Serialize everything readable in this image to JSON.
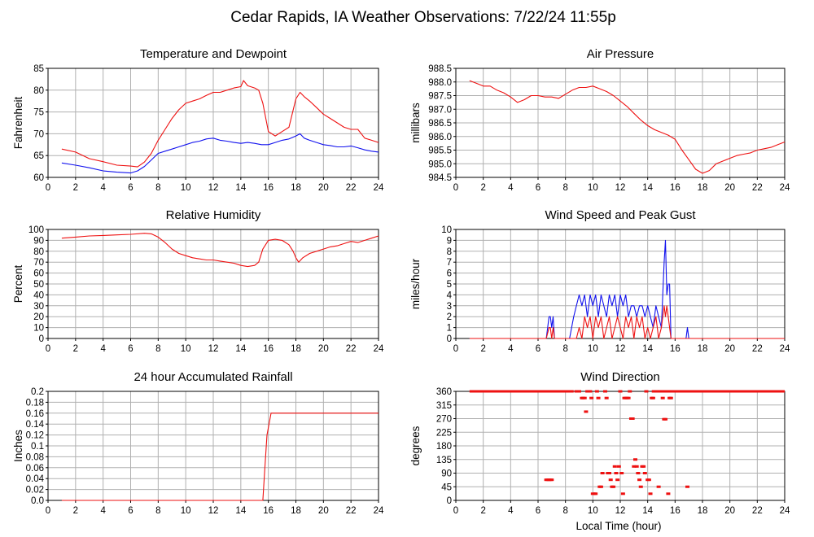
{
  "page": {
    "title": "Cedar Rapids, IA Weather Observations: 7/22/24 11:55p",
    "xlabel": "Local Time (hour)"
  },
  "colors": {
    "red": "#ee1111",
    "blue": "#1111ee",
    "grid": "#b0b0b0",
    "frame": "#000000"
  },
  "chart_data": [
    {
      "type": "line",
      "title": "Temperature and Dewpoint",
      "ylabel": "Fahrenheit",
      "xlim": [
        0,
        24
      ],
      "ylim": [
        60,
        85
      ],
      "xticks": [
        0,
        2,
        4,
        6,
        8,
        10,
        12,
        14,
        16,
        18,
        20,
        22,
        24
      ],
      "yticks": [
        60,
        65,
        70,
        75,
        80,
        85
      ],
      "grid": true,
      "series": [
        {
          "color": "red",
          "x": [
            1,
            2,
            3,
            4,
            5,
            6,
            6.5,
            7,
            7.5,
            8,
            8.5,
            9,
            9.5,
            10,
            10.5,
            11,
            11.5,
            12,
            12.5,
            13,
            13.5,
            14,
            14.2,
            14.5,
            15,
            15.3,
            15.6,
            16,
            16.5,
            17,
            17.5,
            18,
            18.3,
            18.6,
            19,
            19.5,
            20,
            20.5,
            21,
            21.5,
            22,
            22.5,
            23,
            23.5,
            24
          ],
          "y": [
            66.5,
            65.8,
            64.3,
            63.6,
            62.8,
            62.6,
            62.4,
            63.5,
            65.5,
            68.5,
            71,
            73.5,
            75.5,
            77,
            77.5,
            78,
            78.8,
            79.5,
            79.5,
            80,
            80.5,
            80.8,
            82.2,
            81,
            80.5,
            80,
            77,
            70.5,
            69.5,
            70.5,
            71.5,
            78,
            79.5,
            78.5,
            77.5,
            76,
            74.5,
            73.5,
            72.5,
            71.5,
            71,
            71,
            69,
            68.5,
            68
          ]
        },
        {
          "color": "blue",
          "x": [
            1,
            2,
            3,
            4,
            5,
            6,
            6.5,
            7,
            7.5,
            8,
            8.5,
            9,
            9.5,
            10,
            10.5,
            11,
            11.5,
            12,
            12.5,
            13,
            13.5,
            14,
            14.5,
            15,
            15.5,
            16,
            16.5,
            17,
            17.5,
            18,
            18.3,
            18.6,
            19,
            19.5,
            20,
            20.5,
            21,
            21.5,
            22,
            22.5,
            23,
            23.5,
            24
          ],
          "y": [
            63.3,
            62.8,
            62.2,
            61.5,
            61.2,
            61,
            61.5,
            62.5,
            64,
            65.5,
            66,
            66.5,
            67,
            67.5,
            68,
            68.3,
            68.8,
            69,
            68.5,
            68.3,
            68,
            67.8,
            68,
            67.8,
            67.5,
            67.5,
            68,
            68.5,
            68.8,
            69.5,
            70,
            69,
            68.5,
            68,
            67.5,
            67.3,
            67,
            67,
            67.2,
            66.8,
            66.3,
            66,
            65.8
          ]
        }
      ]
    },
    {
      "type": "line",
      "title": "Air Pressure",
      "ylabel": "millibars",
      "xlim": [
        0,
        24
      ],
      "ylim": [
        984.5,
        988.5
      ],
      "xticks": [
        0,
        2,
        4,
        6,
        8,
        10,
        12,
        14,
        16,
        18,
        20,
        22,
        24
      ],
      "yticks": [
        984.5,
        985.0,
        985.5,
        986.0,
        986.5,
        987.0,
        987.5,
        988.0,
        988.5
      ],
      "ytick_labels": [
        "984.5",
        "985.0",
        "985.5",
        "986.0",
        "986.5",
        "987.0",
        "987.5",
        "988.0",
        "988.5"
      ],
      "grid": true,
      "series": [
        {
          "color": "red",
          "x": [
            1,
            1.5,
            2,
            2.5,
            3,
            3.5,
            4,
            4.5,
            5,
            5.5,
            6,
            6.5,
            7,
            7.5,
            8,
            8.5,
            9,
            9.5,
            10,
            10.5,
            11,
            11.5,
            12,
            12.5,
            13,
            13.5,
            14,
            14.5,
            15,
            15.5,
            16,
            16.5,
            17,
            17.5,
            18,
            18.5,
            19,
            19.5,
            20,
            20.5,
            21,
            21.5,
            22,
            22.5,
            23,
            23.5,
            24
          ],
          "y": [
            988.05,
            987.95,
            987.85,
            987.85,
            987.7,
            987.6,
            987.45,
            987.25,
            987.35,
            987.5,
            987.5,
            987.45,
            987.45,
            987.4,
            987.55,
            987.7,
            987.8,
            987.8,
            987.85,
            987.75,
            987.65,
            987.5,
            987.3,
            987.1,
            986.85,
            986.6,
            986.4,
            986.25,
            986.15,
            986.05,
            985.9,
            985.5,
            985.15,
            984.8,
            984.65,
            984.75,
            985.0,
            985.1,
            985.2,
            985.3,
            985.35,
            985.4,
            985.5,
            985.55,
            985.6,
            985.7,
            985.8
          ]
        }
      ]
    },
    {
      "type": "line",
      "title": "Relative Humidity",
      "ylabel": "Percent",
      "xlim": [
        0,
        24
      ],
      "ylim": [
        0,
        100
      ],
      "xticks": [
        0,
        2,
        4,
        6,
        8,
        10,
        12,
        14,
        16,
        18,
        20,
        22,
        24
      ],
      "yticks": [
        0,
        10,
        20,
        30,
        40,
        50,
        60,
        70,
        80,
        90,
        100
      ],
      "grid": true,
      "series": [
        {
          "color": "red",
          "x": [
            1,
            2,
            3,
            4,
            5,
            6,
            7,
            7.5,
            8,
            8.5,
            9,
            9.5,
            10,
            10.5,
            11,
            11.5,
            12,
            12.5,
            13,
            13.5,
            14,
            14.5,
            15,
            15.3,
            15.6,
            16,
            16.5,
            17,
            17.5,
            17.8,
            18,
            18.2,
            18.5,
            19,
            19.5,
            20,
            20.5,
            21,
            21.5,
            22,
            22.5,
            23,
            23.5,
            24
          ],
          "y": [
            92,
            93,
            94,
            94.5,
            95,
            95.5,
            96.5,
            96,
            93,
            88,
            82,
            78,
            76,
            74,
            73,
            72,
            72,
            71,
            70,
            69,
            67,
            66,
            67,
            70,
            82,
            90,
            91,
            90,
            86,
            80,
            74,
            70,
            74,
            78,
            80,
            82,
            84,
            85,
            87,
            89,
            88,
            90,
            92,
            94
          ]
        }
      ]
    },
    {
      "type": "line",
      "title": "Wind Speed and Peak Gust",
      "ylabel": "miles/hour",
      "xlim": [
        0,
        24
      ],
      "ylim": [
        0,
        10
      ],
      "xticks": [
        0,
        2,
        4,
        6,
        8,
        10,
        12,
        14,
        16,
        18,
        20,
        22,
        24
      ],
      "yticks": [
        0,
        1,
        2,
        3,
        4,
        5,
        6,
        7,
        8,
        9,
        10
      ],
      "grid": true,
      "series": [
        {
          "color": "blue",
          "x": [
            1,
            6.6,
            6.8,
            6.9,
            7.0,
            7.1,
            7.2,
            8.3,
            8.6,
            8.8,
            9.0,
            9.2,
            9.4,
            9.6,
            9.8,
            10.0,
            10.2,
            10.4,
            10.6,
            10.8,
            11.0,
            11.2,
            11.4,
            11.6,
            11.8,
            12.0,
            12.2,
            12.4,
            12.6,
            12.8,
            13.0,
            13.2,
            13.4,
            13.6,
            13.8,
            14.0,
            14.2,
            14.4,
            14.6,
            14.8,
            15.0,
            15.1,
            15.2,
            15.3,
            15.4,
            15.5,
            15.6,
            15.7,
            15.8,
            16.0,
            16.8,
            16.9,
            17.0,
            24
          ],
          "y": [
            0,
            0,
            2,
            2,
            1,
            2,
            0,
            0,
            2,
            3,
            4,
            3,
            4,
            2,
            4,
            3,
            4,
            2,
            4,
            3,
            2,
            4,
            3,
            4,
            2,
            4,
            3,
            4,
            2,
            3,
            3,
            2,
            3,
            3,
            2,
            3,
            2,
            1,
            3,
            2,
            1,
            4,
            7,
            9,
            4,
            5,
            5,
            0,
            0,
            0,
            0,
            1,
            0,
            0
          ]
        },
        {
          "color": "red",
          "x": [
            1,
            6.6,
            6.8,
            6.9,
            7.0,
            7.1,
            7.2,
            8.8,
            9.0,
            9.2,
            9.4,
            9.6,
            9.8,
            10.0,
            10.2,
            10.4,
            10.6,
            10.8,
            11.0,
            11.2,
            11.4,
            11.6,
            11.8,
            12.0,
            12.2,
            12.4,
            12.6,
            12.8,
            13.0,
            13.2,
            13.4,
            13.6,
            13.8,
            14.0,
            14.2,
            14.4,
            14.6,
            14.8,
            15.0,
            15.2,
            15.3,
            15.4,
            15.5,
            15.6,
            15.7,
            24
          ],
          "y": [
            0,
            0,
            1,
            1,
            0,
            1,
            0,
            0,
            1,
            0,
            2,
            1,
            2,
            0,
            2,
            1,
            2,
            0,
            1,
            2,
            0,
            1,
            2,
            1,
            0,
            2,
            1,
            2,
            0,
            2,
            1,
            2,
            0,
            1,
            0,
            1,
            2,
            0,
            1,
            3,
            2,
            3,
            2,
            1,
            0,
            0
          ]
        }
      ]
    },
    {
      "type": "line",
      "title": "24 hour Accumulated Rainfall",
      "ylabel": "Inches",
      "xlim": [
        0,
        24
      ],
      "ylim": [
        0,
        0.2
      ],
      "xticks": [
        0,
        2,
        4,
        6,
        8,
        10,
        12,
        14,
        16,
        18,
        20,
        22,
        24
      ],
      "yticks": [
        0,
        0.02,
        0.04,
        0.06,
        0.08,
        0.1,
        0.12,
        0.14,
        0.16,
        0.18,
        0.2
      ],
      "ytick_labels": [
        "0.0",
        "0.02",
        "0.04",
        "0.06",
        "0.08",
        "0.1",
        "0.12",
        "0.14",
        "0.16",
        "0.18",
        "0.2"
      ],
      "grid": true,
      "series": [
        {
          "color": "red",
          "x": [
            1,
            15.6,
            15.75,
            15.9,
            16.05,
            16.2,
            24
          ],
          "y": [
            0,
            0,
            0.06,
            0.12,
            0.14,
            0.16,
            0.16
          ]
        }
      ]
    },
    {
      "type": "scatter",
      "title": "Wind Direction",
      "ylabel": "degrees",
      "xlabel": "Local Time (hour)",
      "xlim": [
        0,
        24
      ],
      "ylim": [
        0,
        360
      ],
      "xticks": [
        0,
        2,
        4,
        6,
        8,
        10,
        12,
        14,
        16,
        18,
        20,
        22,
        24
      ],
      "yticks": [
        0,
        45,
        90,
        135,
        180,
        225,
        270,
        315,
        360
      ],
      "grid": true,
      "solid_segments": [
        {
          "x0": 1,
          "x1": 8.6,
          "y": 360
        },
        {
          "x0": 14.3,
          "x1": 24,
          "y": 360
        }
      ],
      "series": [
        {
          "color": "red",
          "x": [
            6.6,
            6.7,
            6.8,
            6.9,
            7.0,
            8.8,
            9.0,
            9.2,
            9.3,
            9.4,
            9.5,
            9.6,
            9.8,
            9.9,
            10.0,
            10.1,
            10.2,
            10.3,
            10.4,
            10.5,
            10.6,
            10.7,
            10.9,
            11.0,
            11.1,
            11.2,
            11.3,
            11.4,
            11.5,
            11.6,
            11.7,
            11.8,
            11.9,
            12.0,
            12.1,
            12.2,
            12.3,
            12.4,
            12.5,
            12.6,
            12.7,
            12.8,
            12.9,
            13.0,
            13.1,
            13.2,
            13.3,
            13.4,
            13.5,
            13.6,
            13.7,
            13.8,
            13.9,
            14.0,
            14.1,
            14.2,
            14.3,
            14.4,
            14.5,
            14.6,
            14.7,
            14.8,
            15.0,
            15.1,
            15.2,
            15.3,
            15.4,
            15.5,
            15.6,
            15.7,
            15.8,
            16.9
          ],
          "y": [
            68,
            68,
            68,
            68,
            68,
            360,
            360,
            338,
            338,
            338,
            293,
            360,
            360,
            338,
            22,
            22,
            22,
            360,
            338,
            45,
            45,
            90,
            360,
            338,
            90,
            90,
            68,
            45,
            45,
            112,
            90,
            68,
            112,
            360,
            90,
            22,
            338,
            338,
            338,
            338,
            360,
            270,
            270,
            112,
            135,
            112,
            90,
            68,
            45,
            112,
            112,
            90,
            360,
            68,
            68,
            22,
            338,
            338,
            360,
            360,
            360,
            45,
            360,
            338,
            268,
            268,
            360,
            22,
            338,
            338,
            360,
            45
          ]
        }
      ]
    }
  ]
}
